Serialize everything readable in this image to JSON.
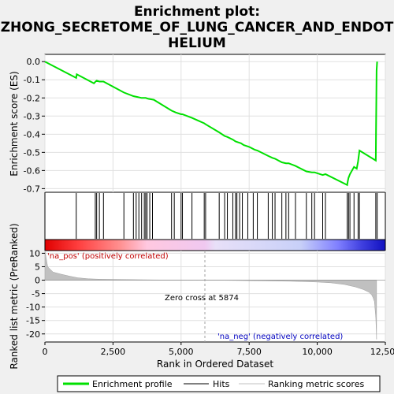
{
  "chart_data": {
    "type": "line",
    "title": "Enrichment plot: ZHONG_SECRETOME_OF_LUNG_CANCER_AND_ENDOTHELIUM",
    "title_lines": [
      "Enrichment plot:",
      "ZHONG_SECRETOME_OF_LUNG_CANCER_AND_ENDOT",
      "HELIUM"
    ],
    "xlabel": "Rank in Ordered Dataset",
    "ylabel_top": "Enrichment score (ES)",
    "ylabel_bottom": "Ranked list metric (PreRanked)",
    "xlim": [
      0,
      12500
    ],
    "x_ticks": [
      0,
      2500,
      5000,
      7500,
      10000,
      12500
    ],
    "x_tick_labels": [
      "0",
      "2,500",
      "5,000",
      "7,500",
      "10,000",
      "12,500"
    ],
    "es_ylim": [
      -0.72,
      0.04
    ],
    "es_ticks": [
      0.0,
      -0.1,
      -0.2,
      -0.3,
      -0.4,
      -0.5,
      -0.6,
      -0.7
    ],
    "es_tick_labels": [
      "0.0",
      "-0.1",
      "-0.2",
      "-0.3",
      "-0.4",
      "-0.5",
      "-0.6",
      "-0.7"
    ],
    "metric_ylim": [
      -23,
      11
    ],
    "metric_ticks": [
      10,
      5,
      0,
      -5,
      -10,
      -15,
      -20
    ],
    "metric_tick_labels": [
      "10",
      "5",
      "0",
      "-5",
      "-10",
      "-15",
      "-20"
    ],
    "grid": true,
    "es_color": "#00e000",
    "es_curve": {
      "x": [
        0,
        1150,
        1170,
        1800,
        1860,
        1900,
        2000,
        2150,
        2900,
        3250,
        3400,
        3550,
        3700,
        3800,
        4000,
        4650,
        4800,
        5000,
        5050,
        5400,
        5850,
        5900,
        6400,
        6600,
        6700,
        6900,
        7000,
        7100,
        7200,
        7300,
        7500,
        7700,
        7800,
        8200,
        8350,
        8450,
        8700,
        8850,
        8950,
        9200,
        9600,
        9800,
        9900,
        10200,
        10300,
        11100,
        11120,
        11150,
        11200,
        11350,
        11450,
        11500,
        11550,
        12150,
        12160,
        12170,
        12180,
        12200
      ],
      "y": [
        0.0,
        -0.09,
        -0.07,
        -0.12,
        -0.11,
        -0.105,
        -0.11,
        -0.11,
        -0.17,
        -0.19,
        -0.195,
        -0.2,
        -0.2,
        -0.205,
        -0.21,
        -0.27,
        -0.28,
        -0.29,
        -0.29,
        -0.31,
        -0.34,
        -0.345,
        -0.39,
        -0.41,
        -0.415,
        -0.43,
        -0.44,
        -0.445,
        -0.45,
        -0.46,
        -0.47,
        -0.485,
        -0.49,
        -0.52,
        -0.53,
        -0.535,
        -0.555,
        -0.56,
        -0.56,
        -0.575,
        -0.605,
        -0.61,
        -0.61,
        -0.625,
        -0.62,
        -0.68,
        -0.66,
        -0.64,
        -0.62,
        -0.58,
        -0.59,
        -0.55,
        -0.49,
        -0.545,
        -0.38,
        -0.2,
        -0.05,
        0.0
      ]
    },
    "hits": [
      1150,
      1850,
      1900,
      2000,
      2150,
      2900,
      3250,
      3350,
      3450,
      3550,
      3650,
      3700,
      3750,
      3850,
      3950,
      4650,
      4750,
      5000,
      5050,
      5400,
      5850,
      5900,
      6400,
      6600,
      6700,
      6900,
      7000,
      7050,
      7150,
      7250,
      7450,
      7650,
      7800,
      8200,
      8350,
      8450,
      8700,
      8850,
      8950,
      9200,
      9600,
      9800,
      9900,
      10200,
      10300,
      11100,
      11150,
      11200,
      11350,
      11500,
      11550,
      12150,
      12200
    ],
    "metric_curve": {
      "x": [
        0,
        100,
        300,
        600,
        900,
        1200,
        1600,
        2000,
        3000,
        4000,
        5000,
        5874,
        7000,
        8000,
        9000,
        10000,
        10500,
        11000,
        11400,
        11700,
        11900,
        12000,
        12050,
        12100,
        12150,
        12180
      ],
      "y": [
        11,
        5,
        3,
        2.2,
        1.5,
        0.9,
        0.5,
        0.35,
        0.2,
        0.1,
        0.05,
        0.0,
        -0.1,
        -0.25,
        -0.4,
        -0.7,
        -1.0,
        -1.6,
        -2.5,
        -3.5,
        -4.5,
        -5.5,
        -6.5,
        -8,
        -14,
        -22
      ]
    },
    "zero_cross": 5874,
    "zero_cross_label": "Zero cross at 5874",
    "pos_label": "'na_pos' (positively correlated)",
    "neg_label": "'na_neg' (negatively correlated)",
    "legend": [
      "Enrichment profile",
      "Hits",
      "Ranking metric scores"
    ],
    "legend_placement": "bottom"
  }
}
